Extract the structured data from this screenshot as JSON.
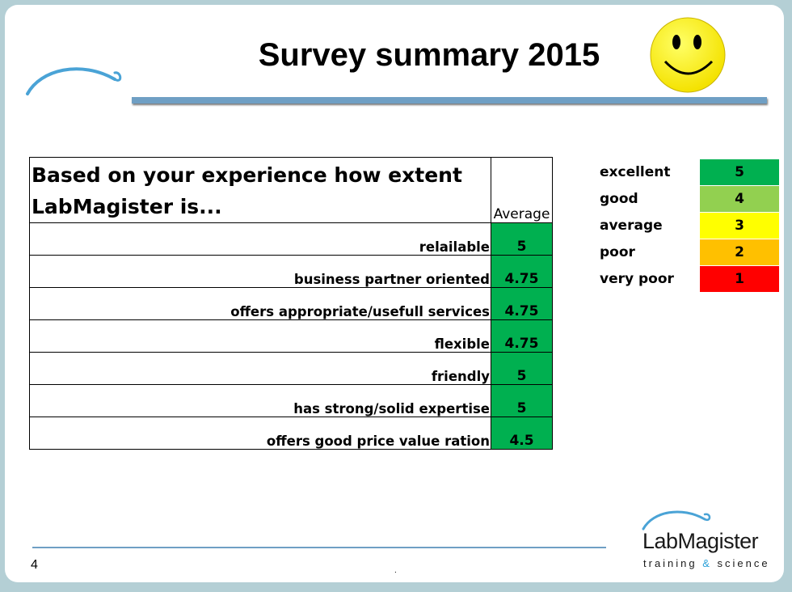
{
  "title": "Survey summary 2015",
  "table": {
    "question": "Based on your experience how extent LabMagister is...",
    "average_header": "Average",
    "rows": [
      {
        "criterion": "relailable",
        "value": "5"
      },
      {
        "criterion": "business partner oriented",
        "value": "4.75"
      },
      {
        "criterion": "offers appropriate/usefull services",
        "value": "4.75"
      },
      {
        "criterion": "flexible",
        "value": "4.75"
      },
      {
        "criterion": "friendly",
        "value": "5"
      },
      {
        "criterion": "has strong/solid expertise",
        "value": "5"
      },
      {
        "criterion": "offers good price value ration",
        "value": "4.5"
      }
    ]
  },
  "legend": [
    {
      "label": "excellent",
      "score": "5",
      "color": "#00b050"
    },
    {
      "label": "good",
      "score": "4",
      "color": "#92d050"
    },
    {
      "label": "average",
      "score": "3",
      "color": "#ffff00"
    },
    {
      "label": "poor",
      "score": "2",
      "color": "#ffc000"
    },
    {
      "label": "very poor",
      "score": "1",
      "color": "#ff0000"
    }
  ],
  "footer": {
    "page_number": "4",
    "dot": ".",
    "logo_name": "LabMagister",
    "logo_tag_1": "training ",
    "logo_tag_amp": "&",
    "logo_tag_2": " science"
  },
  "colors": {
    "accent_line": "#6f9fc4",
    "smiley": "#ffff00",
    "cell_green": "#00b050"
  }
}
